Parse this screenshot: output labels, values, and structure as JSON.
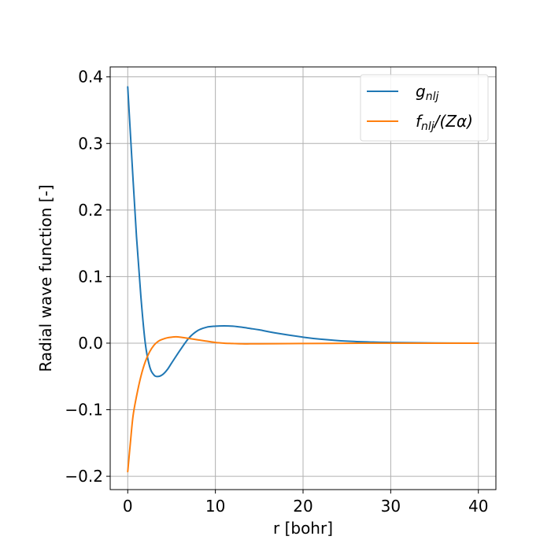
{
  "chart_data": {
    "type": "line",
    "title": "",
    "xlabel": "r [bohr]",
    "ylabel": "Radial wave function [-]",
    "xlim": [
      -2,
      42
    ],
    "ylim": [
      -0.22,
      0.415
    ],
    "x_ticks": [
      0,
      10,
      20,
      30,
      40
    ],
    "x_tick_labels": [
      "0",
      "10",
      "20",
      "30",
      "40"
    ],
    "y_ticks": [
      -0.2,
      -0.1,
      0.0,
      0.1,
      0.2,
      0.3,
      0.4
    ],
    "y_tick_labels": [
      "−0.2",
      "−0.1",
      "0.0",
      "0.1",
      "0.2",
      "0.3",
      "0.4"
    ],
    "grid": true,
    "legend_position": "top-right",
    "colors": {
      "g": "#1f77b4",
      "f": "#ff7f0e",
      "grid": "#b0b0b0",
      "axis": "#000000",
      "legend_border": "#d9d9d9"
    },
    "series": [
      {
        "name": "g_nlj",
        "legend": {
          "base": "g",
          "sub": "nlj",
          "suffix": ""
        },
        "color": "#1f77b4",
        "x": [
          0,
          0.5,
          1,
          1.5,
          2,
          2.5,
          3,
          3.5,
          4,
          4.5,
          5,
          6,
          7,
          8,
          9,
          10,
          11,
          12,
          13,
          14,
          15,
          17,
          20,
          22,
          25,
          28,
          30,
          35,
          40
        ],
        "y": [
          0.385,
          0.27,
          0.16,
          0.07,
          0.0,
          -0.035,
          -0.048,
          -0.05,
          -0.047,
          -0.04,
          -0.03,
          -0.01,
          0.008,
          0.019,
          0.024,
          0.0255,
          0.026,
          0.0255,
          0.024,
          0.022,
          0.02,
          0.015,
          0.009,
          0.006,
          0.003,
          0.0015,
          0.001,
          0.0003,
          0.0
        ]
      },
      {
        "name": "f_nlj/(Zα)",
        "legend": {
          "base": "f",
          "sub": "nlj",
          "suffix": "/(Zα)"
        },
        "color": "#ff7f0e",
        "x": [
          0,
          0.3,
          0.6,
          1,
          1.5,
          2,
          2.5,
          3,
          3.5,
          4,
          4.5,
          5,
          5.5,
          6,
          7,
          8,
          9,
          10,
          11,
          12,
          13,
          14,
          15,
          17,
          20,
          25,
          30,
          40
        ],
        "y": [
          -0.193,
          -0.15,
          -0.11,
          -0.08,
          -0.05,
          -0.028,
          -0.013,
          -0.003,
          0.003,
          0.006,
          0.008,
          0.009,
          0.0095,
          0.009,
          0.007,
          0.005,
          0.003,
          0.001,
          0.0,
          -0.0005,
          -0.001,
          -0.001,
          -0.001,
          -0.0008,
          -0.0005,
          -0.0002,
          0.0,
          0.0
        ]
      }
    ]
  }
}
